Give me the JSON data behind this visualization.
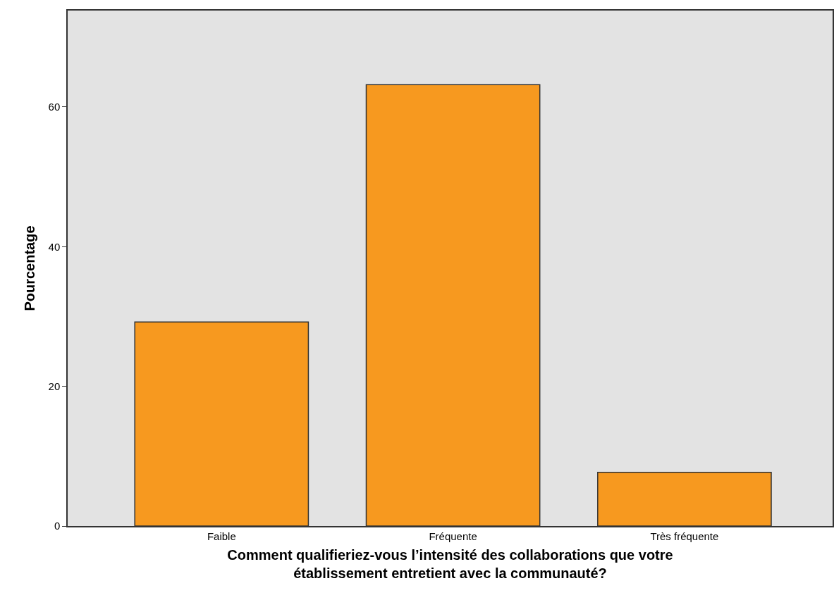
{
  "chart_data": {
    "type": "bar",
    "xlabel": "Comment qualifieriez-vous l’intensité des collaborations que votre\nétablissement entretient avec la communauté?",
    "ylabel": "Pourcentage",
    "categories": [
      "Faible",
      "Fréquente",
      "Très fréquente"
    ],
    "values": [
      29.2,
      63.2,
      7.7
    ],
    "color": "#f7991f",
    "ylim": [
      0,
      73.8
    ],
    "yticks": [
      0,
      20,
      40,
      60
    ],
    "grid": false
  }
}
